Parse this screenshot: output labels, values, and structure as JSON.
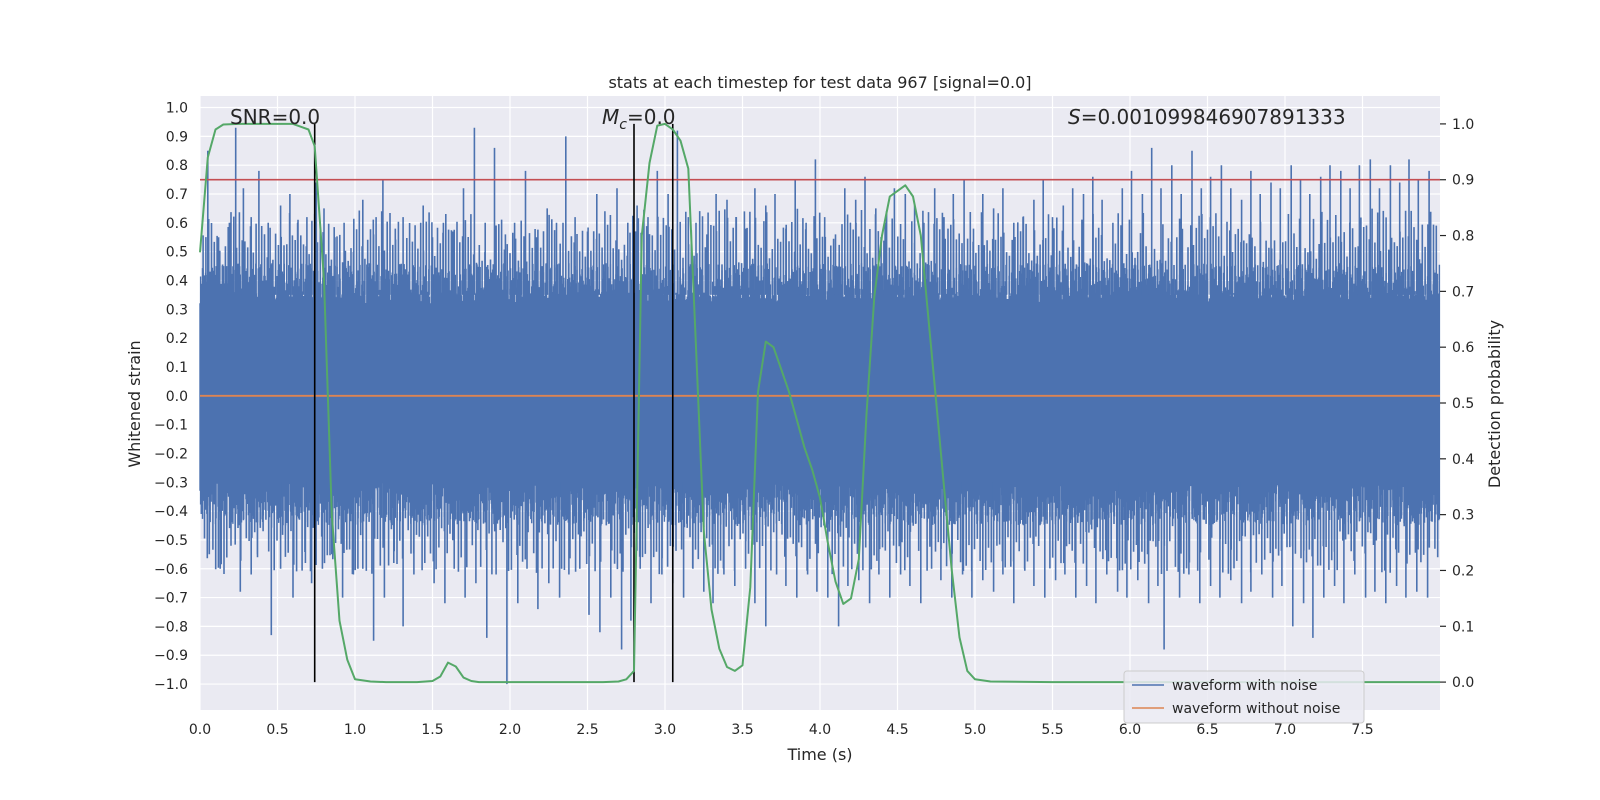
{
  "chart_data": {
    "type": "line",
    "title": "stats at each timestep for test data 967 [signal=0.0]",
    "xlabel": "Time (s)",
    "ylabel": "Whitened strain",
    "y2label": "Detection probability",
    "xlim": [
      0.0,
      8.0
    ],
    "ylim": [
      -1.09,
      1.04
    ],
    "y2lim": [
      -0.05,
      1.05
    ],
    "x_ticks": [
      0.0,
      0.5,
      1.0,
      1.5,
      2.0,
      2.5,
      3.0,
      3.5,
      4.0,
      4.5,
      5.0,
      5.5,
      6.0,
      6.5,
      7.0,
      7.5
    ],
    "x_tick_labels": [
      "0.0",
      "0.5",
      "1.0",
      "1.5",
      "2.0",
      "2.5",
      "3.0",
      "3.5",
      "4.0",
      "4.5",
      "5.0",
      "5.5",
      "6.0",
      "6.5",
      "7.0",
      "7.5"
    ],
    "y_ticks": [
      1.0,
      0.9,
      0.8,
      0.7,
      0.6,
      0.5,
      0.4,
      0.3,
      0.2,
      0.1,
      0.0,
      -0.1,
      -0.2,
      -0.3,
      -0.4,
      -0.5,
      -0.6,
      -0.7,
      -0.8,
      -0.9,
      -1.0
    ],
    "y_tick_labels": [
      "1.0",
      "0.9",
      "0.8",
      "0.7",
      "0.6",
      "0.5",
      "0.4",
      "0.3",
      "0.2",
      "0.1",
      "0.0",
      "−0.1",
      "−0.2",
      "−0.3",
      "−0.4",
      "−0.5",
      "−0.6",
      "−0.7",
      "−0.8",
      "−0.9",
      "−1.0"
    ],
    "y2_ticks": [
      1.0,
      0.9,
      0.8,
      0.7,
      0.6,
      0.5,
      0.4,
      0.3,
      0.2,
      0.1,
      0.0
    ],
    "y2_tick_labels": [
      "1.0",
      "0.9",
      "0.8",
      "0.7",
      "0.6",
      "0.5",
      "0.4",
      "0.3",
      "0.2",
      "0.1",
      "0.0"
    ],
    "grid": true,
    "legend": {
      "position": "lower-right",
      "entries": [
        "waveform with noise",
        "waveform without noise"
      ]
    },
    "annotations": {
      "snr_prefix": "SNR",
      "snr_value": "=0.0",
      "mc_symbol": "M",
      "mc_subscript": "c",
      "mc_value": "=0.0",
      "s_symbol": "S",
      "s_value": "=0.001099846907891333"
    },
    "series": [
      {
        "name": "waveform with noise",
        "axis": "left",
        "style": "noise-band",
        "description_values": {
          "x_range": [
            0.0,
            8.0
          ],
          "typical_envelope": [
            -0.45,
            0.45
          ],
          "peak_max": 0.93,
          "peak_min": -1.0
        },
        "peaks_x": [
          0.05,
          0.12,
          0.19,
          0.23,
          0.28,
          0.33,
          0.38,
          0.44,
          0.52,
          0.58,
          0.63,
          0.69,
          0.75,
          0.8,
          0.87,
          0.93,
          0.99,
          1.05,
          1.12,
          1.18,
          1.26,
          1.31,
          1.37,
          1.44,
          1.5,
          1.57,
          1.63,
          1.7,
          1.77,
          1.84,
          1.9,
          1.97,
          2.03,
          2.1,
          2.17,
          2.24,
          2.3,
          2.36,
          2.42,
          2.5,
          2.56,
          2.63,
          2.69,
          2.76,
          2.82,
          2.89,
          2.95,
          3.02,
          3.08,
          3.15,
          3.2,
          3.27,
          3.33,
          3.4,
          3.46,
          3.52,
          3.58,
          3.65,
          3.71,
          3.78,
          3.84,
          3.91,
          3.97,
          4.03,
          4.1,
          4.16,
          4.23,
          4.29,
          4.36,
          4.42,
          4.48,
          4.55,
          4.61,
          4.67,
          4.74,
          4.8,
          4.86,
          4.93,
          4.99,
          5.05,
          5.12,
          5.18,
          5.25,
          5.31,
          5.38,
          5.44,
          5.5,
          5.57,
          5.63,
          5.7,
          5.76,
          5.82,
          5.89,
          5.95,
          6.01,
          6.08,
          6.14,
          6.2,
          6.27,
          6.33,
          6.4,
          6.46,
          6.52,
          6.59,
          6.65,
          6.72,
          6.78,
          6.84,
          6.91,
          6.97,
          7.04,
          7.1,
          7.16,
          7.23,
          7.29,
          7.36,
          7.42,
          7.48,
          7.55,
          7.61,
          7.68,
          7.74,
          7.8,
          7.86,
          7.93
        ],
        "peaks_y": [
          0.85,
          0.55,
          0.6,
          0.93,
          0.72,
          0.62,
          0.78,
          0.6,
          0.66,
          0.7,
          0.6,
          0.62,
          0.74,
          0.65,
          0.55,
          0.6,
          0.5,
          0.68,
          0.56,
          0.75,
          0.58,
          0.62,
          0.52,
          0.66,
          0.55,
          0.6,
          0.57,
          0.72,
          0.93,
          0.6,
          0.86,
          0.56,
          0.6,
          0.78,
          0.55,
          0.65,
          0.6,
          0.9,
          0.62,
          0.57,
          0.7,
          0.55,
          0.72,
          0.6,
          0.66,
          0.62,
          0.78,
          0.7,
          0.92,
          0.62,
          0.6,
          0.56,
          0.7,
          0.68,
          0.62,
          0.58,
          0.72,
          0.66,
          0.7,
          0.58,
          0.75,
          0.6,
          0.82,
          0.62,
          0.56,
          0.72,
          0.68,
          0.76,
          0.65,
          0.6,
          0.72,
          0.7,
          0.66,
          0.6,
          0.72,
          0.62,
          0.7,
          0.75,
          0.58,
          0.7,
          0.65,
          0.72,
          0.6,
          0.62,
          0.68,
          0.75,
          0.62,
          0.66,
          0.72,
          0.7,
          0.76,
          0.68,
          0.6,
          0.72,
          0.78,
          0.7,
          0.86,
          0.72,
          0.8,
          0.7,
          0.85,
          0.72,
          0.76,
          0.8,
          0.72,
          0.68,
          0.78,
          0.7,
          0.74,
          0.72,
          0.8,
          0.75,
          0.7,
          0.76,
          0.8,
          0.78,
          0.72,
          0.8,
          0.82,
          0.72,
          0.8,
          0.74,
          0.82,
          0.75,
          0.78
        ],
        "troughs_x": [
          0.06,
          0.13,
          0.2,
          0.26,
          0.33,
          0.37,
          0.46,
          0.52,
          0.6,
          0.68,
          0.72,
          0.79,
          0.85,
          0.92,
          0.99,
          1.05,
          1.12,
          1.19,
          1.25,
          1.31,
          1.38,
          1.45,
          1.51,
          1.58,
          1.64,
          1.71,
          1.78,
          1.85,
          1.91,
          1.98,
          2.05,
          2.11,
          2.18,
          2.25,
          2.32,
          2.38,
          2.45,
          2.51,
          2.58,
          2.65,
          2.72,
          2.78,
          2.84,
          2.91,
          2.98,
          3.05,
          3.12,
          3.18,
          3.25,
          3.31,
          3.38,
          3.45,
          3.52,
          3.58,
          3.65,
          3.72,
          3.78,
          3.85,
          3.92,
          3.98,
          4.05,
          4.12,
          4.18,
          4.25,
          4.32,
          4.38,
          4.45,
          4.52,
          4.58,
          4.65,
          4.72,
          4.78,
          4.85,
          4.92,
          4.98,
          5.05,
          5.12,
          5.18,
          5.25,
          5.32,
          5.38,
          5.45,
          5.52,
          5.58,
          5.65,
          5.72,
          5.78,
          5.85,
          5.92,
          5.98,
          6.05,
          6.12,
          6.18,
          6.22,
          6.32,
          6.38,
          6.45,
          6.52,
          6.58,
          6.65,
          6.72,
          6.78,
          6.85,
          6.92,
          6.98,
          7.05,
          7.12,
          7.18,
          7.25,
          7.32,
          7.38,
          7.45,
          7.52,
          7.58,
          7.65,
          7.72,
          7.78,
          7.85,
          7.92
        ],
        "troughs_y": [
          -0.55,
          -0.6,
          -0.52,
          -0.68,
          -0.62,
          -0.55,
          -0.83,
          -0.6,
          -0.7,
          -0.58,
          -0.65,
          -0.6,
          -0.55,
          -0.7,
          -0.62,
          -0.6,
          -0.85,
          -0.7,
          -0.58,
          -0.8,
          -0.62,
          -0.58,
          -0.65,
          -0.72,
          -0.6,
          -0.7,
          -0.65,
          -0.84,
          -0.62,
          -1.0,
          -0.72,
          -0.6,
          -0.74,
          -0.65,
          -0.7,
          -0.62,
          -0.6,
          -0.76,
          -0.82,
          -0.7,
          -0.88,
          -0.78,
          -0.6,
          -0.72,
          -0.62,
          -0.65,
          -0.7,
          -0.6,
          -0.68,
          -0.72,
          -0.62,
          -0.66,
          -0.6,
          -0.72,
          -0.8,
          -0.62,
          -0.66,
          -0.7,
          -0.62,
          -0.68,
          -0.7,
          -0.8,
          -0.66,
          -0.64,
          -0.72,
          -0.62,
          -0.7,
          -0.62,
          -0.66,
          -0.72,
          -0.6,
          -0.64,
          -0.7,
          -0.62,
          -0.7,
          -0.64,
          -0.68,
          -0.62,
          -0.72,
          -0.6,
          -0.66,
          -0.7,
          -0.64,
          -0.62,
          -0.7,
          -0.66,
          -0.72,
          -0.62,
          -0.68,
          -0.7,
          -0.64,
          -0.72,
          -0.66,
          -0.88,
          -0.7,
          -0.62,
          -0.72,
          -0.66,
          -0.7,
          -0.64,
          -0.72,
          -0.68,
          -0.62,
          -0.7,
          -0.66,
          -0.8,
          -0.72,
          -0.84,
          -0.7,
          -0.66,
          -0.72,
          -0.62,
          -0.7,
          -0.68,
          -0.72,
          -0.66,
          -0.7,
          -0.68,
          -0.7
        ]
      },
      {
        "name": "waveform without noise",
        "axis": "left",
        "x": [
          0.0,
          8.0
        ],
        "y": [
          0.0,
          0.0
        ]
      },
      {
        "name": "",
        "axis": "right",
        "x": [
          0.0,
          0.05,
          0.1,
          0.15,
          0.25,
          0.4,
          0.5,
          0.6,
          0.7,
          0.74,
          0.8,
          0.85,
          0.9,
          0.95,
          1.0,
          1.1,
          1.2,
          1.3,
          1.4,
          1.5,
          1.55,
          1.6,
          1.65,
          1.7,
          1.75,
          1.8,
          1.9,
          2.0,
          2.2,
          2.4,
          2.6,
          2.7,
          2.75,
          2.8,
          2.85,
          2.9,
          2.95,
          3.0,
          3.05,
          3.1,
          3.15,
          3.2,
          3.25,
          3.3,
          3.35,
          3.4,
          3.45,
          3.5,
          3.55,
          3.6,
          3.65,
          3.7,
          3.75,
          3.8,
          3.85,
          3.9,
          3.95,
          4.0,
          4.05,
          4.1,
          4.15,
          4.2,
          4.25,
          4.3,
          4.35,
          4.4,
          4.45,
          4.5,
          4.55,
          4.6,
          4.65,
          4.7,
          4.75,
          4.8,
          4.85,
          4.9,
          4.95,
          5.0,
          5.1,
          5.5,
          6.0,
          6.5,
          7.0,
          7.5,
          8.0
        ],
        "y": [
          0.77,
          0.94,
          0.99,
          0.999,
          1.0,
          1.0,
          1.0,
          1.0,
          0.99,
          0.96,
          0.72,
          0.3,
          0.11,
          0.04,
          0.005,
          0.001,
          0.0,
          0.0,
          0.0,
          0.002,
          0.01,
          0.035,
          0.028,
          0.008,
          0.002,
          0.0,
          0.0,
          0.0,
          0.0,
          0.0,
          0.0,
          0.001,
          0.005,
          0.02,
          0.8,
          0.93,
          0.997,
          1.0,
          0.99,
          0.97,
          0.92,
          0.6,
          0.27,
          0.13,
          0.06,
          0.027,
          0.02,
          0.03,
          0.17,
          0.52,
          0.61,
          0.6,
          0.56,
          0.52,
          0.47,
          0.42,
          0.38,
          0.33,
          0.25,
          0.18,
          0.14,
          0.15,
          0.22,
          0.48,
          0.69,
          0.8,
          0.87,
          0.88,
          0.89,
          0.87,
          0.8,
          0.65,
          0.5,
          0.35,
          0.2,
          0.08,
          0.02,
          0.005,
          0.001,
          0.0,
          0.0,
          0.0,
          0.0,
          0.0,
          0.0
        ]
      }
    ],
    "threshold_y2": 0.9,
    "vlines_x": [
      0.74,
      2.8,
      3.05
    ],
    "hlines_left_grid_extra": [
      0.35,
      0.16,
      -0.04,
      -0.23
    ]
  },
  "colors": {
    "plot_background": "#eaeaf2",
    "grid": "#ffffff",
    "noise": "#4c72b0",
    "clean": "#dd8452",
    "probability": "#55a868",
    "threshold": "#c44e52",
    "vline": "#000000",
    "text": "#262626"
  }
}
